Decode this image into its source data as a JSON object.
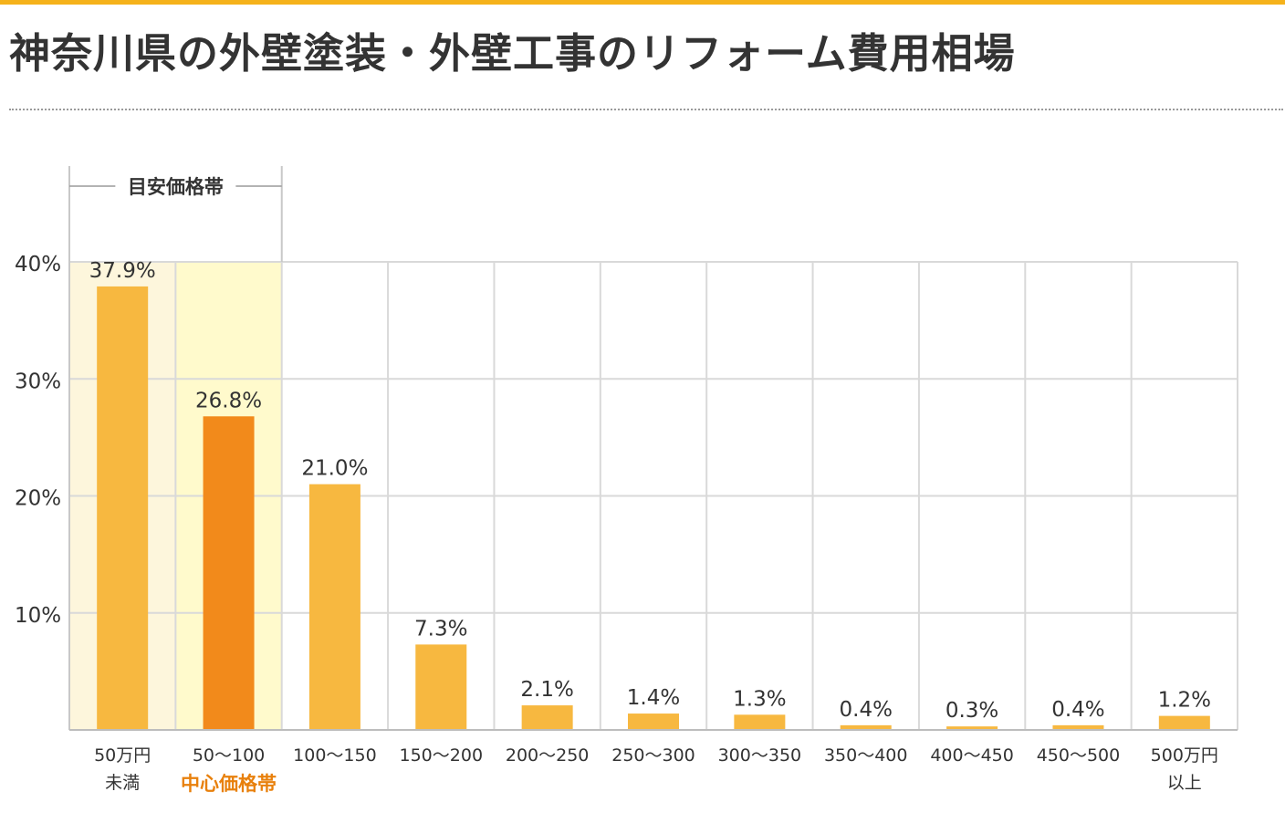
{
  "page": {
    "title": "神奈川県の外壁塗装・外壁工事のリフォーム費用相場"
  },
  "colors": {
    "accent": "#f5b21b",
    "bar": "#f7b840",
    "bar_highlight": "#f28a1b",
    "band_guide": "#fdf6dc",
    "band_center": "#fffacc",
    "center_label": "#e8800c",
    "grid": "#d9d9d9"
  },
  "chart_data": {
    "type": "bar",
    "categories": [
      [
        "50万円",
        "未満"
      ],
      [
        "50～100"
      ],
      [
        "100～150"
      ],
      [
        "150～200"
      ],
      [
        "200～250"
      ],
      [
        "250～300"
      ],
      [
        "300～350"
      ],
      [
        "350～400"
      ],
      [
        "400～450"
      ],
      [
        "450～500"
      ],
      [
        "500万円",
        "以上"
      ]
    ],
    "values": [
      37.9,
      26.8,
      21.0,
      7.3,
      2.1,
      1.4,
      1.3,
      0.4,
      0.3,
      0.4,
      1.2
    ],
    "value_labels": [
      "37.9%",
      "26.8%",
      "21.0%",
      "7.3%",
      "2.1%",
      "1.4%",
      "1.3%",
      "0.4%",
      "0.3%",
      "0.4%",
      "1.2%"
    ],
    "ylim": [
      0,
      40
    ],
    "yticks": [
      10,
      20,
      30,
      40
    ],
    "ytick_labels": [
      "10%",
      "20%",
      "30%",
      "40%"
    ],
    "grid": true,
    "highlight_index": 1,
    "guide_range": [
      0,
      1
    ],
    "guide_label": "目安価格帯",
    "center_index": 1,
    "center_label": "中心価格帯"
  }
}
